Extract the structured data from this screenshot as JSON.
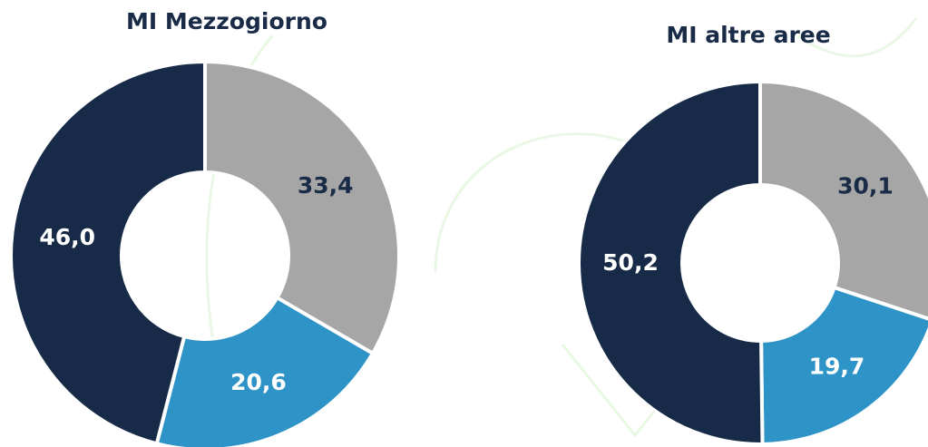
{
  "chart_data": [
    {
      "type": "donut",
      "title": "MI Mezzogiorno",
      "values": [
        33.4,
        20.6,
        46.0
      ],
      "value_labels": [
        "33,4",
        "20,6",
        "46,0"
      ],
      "colors": [
        "#a6a6a6",
        "#2e93c6",
        "#172a48"
      ]
    },
    {
      "type": "donut",
      "title": "MI altre aree",
      "values": [
        30.1,
        19.7,
        50.2
      ],
      "value_labels": [
        "30,1",
        "19,7",
        "50,2"
      ],
      "colors": [
        "#a6a6a6",
        "#2e93c6",
        "#172a48"
      ]
    }
  ]
}
